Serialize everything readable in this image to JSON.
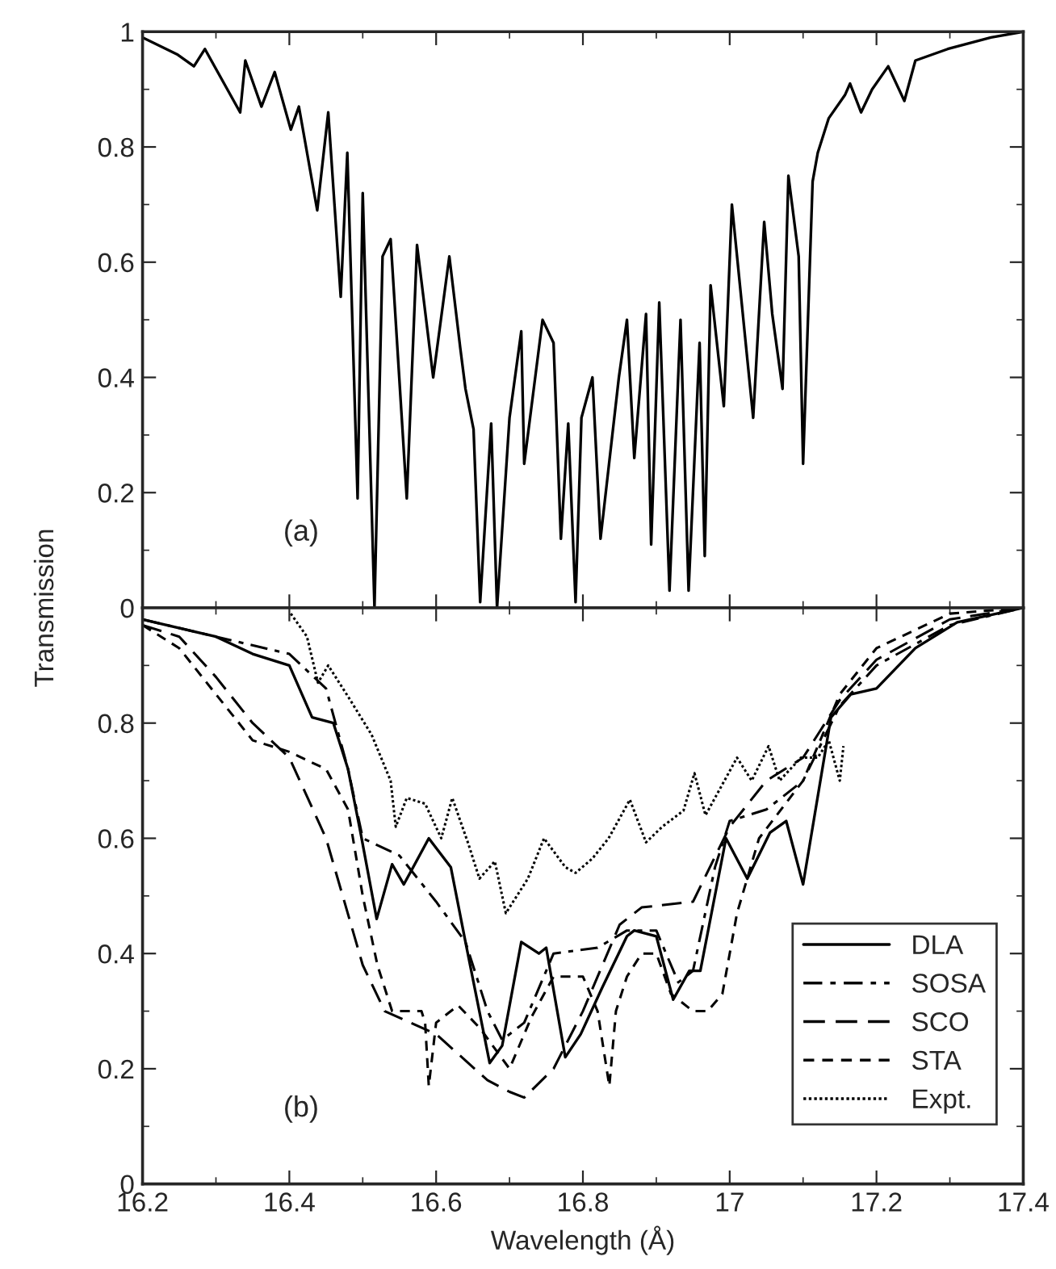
{
  "chart_data": [
    {
      "type": "line",
      "ylim": [
        0,
        1
      ],
      "yticks": [
        0,
        0.2,
        0.4,
        0.6,
        0.8,
        1
      ],
      "xlim": [
        16.2,
        17.4
      ],
      "xticks": [
        16.2,
        16.4,
        16.6,
        16.8,
        17,
        17.2,
        17.4
      ],
      "tick_labels": "y",
      "annotations": [
        "(a)"
      ],
      "grid": false,
      "legend": false,
      "series": [
        {
          "color": "#000000",
          "line_style": "solid",
          "x": [
            16.2,
            16.248,
            16.27,
            16.285,
            16.333,
            16.34,
            16.362,
            16.38,
            16.402,
            16.413,
            16.438,
            16.453,
            16.47,
            16.479,
            16.493,
            16.5,
            16.516,
            16.527,
            16.538,
            16.56,
            16.574,
            16.596,
            16.618,
            16.633,
            16.64,
            16.651,
            16.66,
            16.675,
            16.683,
            16.7,
            16.716,
            16.72,
            16.745,
            16.76,
            16.77,
            16.78,
            16.79,
            16.798,
            16.813,
            16.824,
            16.849,
            16.86,
            16.87,
            16.886,
            16.893,
            16.904,
            16.918,
            16.933,
            16.944,
            16.959,
            16.966,
            16.974,
            16.992,
            17.003,
            17.021,
            17.032,
            17.047,
            17.058,
            17.072,
            17.08,
            17.094,
            17.1,
            17.113,
            17.12,
            17.135,
            17.157,
            17.164,
            17.179,
            17.194,
            17.216,
            17.238,
            17.253,
            17.297,
            17.356,
            17.4
          ],
          "values": [
            0.99,
            0.96,
            0.94,
            0.97,
            0.86,
            0.95,
            0.87,
            0.93,
            0.83,
            0.87,
            0.69,
            0.86,
            0.54,
            0.79,
            0.19,
            0.72,
            0.0,
            0.61,
            0.64,
            0.19,
            0.63,
            0.4,
            0.61,
            0.45,
            0.38,
            0.31,
            0.01,
            0.32,
            0.0,
            0.33,
            0.48,
            0.25,
            0.5,
            0.46,
            0.12,
            0.32,
            0.01,
            0.33,
            0.4,
            0.12,
            0.4,
            0.5,
            0.26,
            0.51,
            0.11,
            0.53,
            0.03,
            0.5,
            0.03,
            0.46,
            0.09,
            0.56,
            0.35,
            0.7,
            0.47,
            0.33,
            0.67,
            0.51,
            0.38,
            0.75,
            0.61,
            0.25,
            0.74,
            0.79,
            0.85,
            0.89,
            0.91,
            0.86,
            0.9,
            0.94,
            0.88,
            0.95,
            0.97,
            0.99,
            1.0
          ]
        }
      ]
    },
    {
      "type": "line",
      "ylim": [
        0,
        1
      ],
      "yticks": [
        0,
        0.2,
        0.4,
        0.6,
        0.8
      ],
      "xlim": [
        16.2,
        17.4
      ],
      "xticks": [
        16.2,
        16.4,
        16.6,
        16.8,
        17,
        17.2,
        17.4
      ],
      "xlabel": "Wavelength (Å)",
      "ylabel": "Transmission",
      "annotations": [
        "(b)"
      ],
      "grid": false,
      "legend": "bottom right",
      "series": [
        {
          "name": "DLA",
          "color": "#000000",
          "line_style": "solid",
          "x": [
            16.2,
            16.3,
            16.35,
            16.4,
            16.431,
            16.46,
            16.48,
            16.497,
            16.519,
            16.54,
            16.556,
            16.59,
            16.62,
            16.64,
            16.673,
            16.69,
            16.716,
            16.74,
            16.75,
            16.776,
            16.797,
            16.826,
            16.86,
            16.87,
            16.9,
            16.923,
            16.945,
            16.96,
            16.995,
            17.024,
            17.055,
            17.077,
            17.1,
            17.138,
            17.165,
            17.2,
            17.253,
            17.31,
            17.4
          ],
          "values": [
            0.98,
            0.95,
            0.92,
            0.9,
            0.81,
            0.8,
            0.72,
            0.61,
            0.46,
            0.555,
            0.52,
            0.6,
            0.55,
            0.42,
            0.21,
            0.24,
            0.42,
            0.4,
            0.41,
            0.22,
            0.26,
            0.34,
            0.43,
            0.44,
            0.43,
            0.32,
            0.37,
            0.37,
            0.6,
            0.53,
            0.61,
            0.63,
            0.52,
            0.81,
            0.85,
            0.86,
            0.93,
            0.975,
            1.0
          ]
        },
        {
          "name": "SOSA",
          "color": "#000000",
          "line_style": "dashdot",
          "x": [
            16.2,
            16.3,
            16.4,
            16.45,
            16.48,
            16.5,
            16.55,
            16.6,
            16.64,
            16.67,
            16.69,
            16.72,
            16.76,
            16.82,
            16.86,
            16.9,
            16.93,
            16.95,
            16.98,
            17.0,
            17.05,
            17.1,
            17.15,
            17.2,
            17.3,
            17.4
          ],
          "values": [
            0.98,
            0.95,
            0.92,
            0.86,
            0.72,
            0.6,
            0.57,
            0.49,
            0.42,
            0.3,
            0.25,
            0.28,
            0.4,
            0.41,
            0.44,
            0.44,
            0.35,
            0.37,
            0.55,
            0.63,
            0.65,
            0.7,
            0.83,
            0.9,
            0.97,
            1.0
          ]
        },
        {
          "name": "SCO",
          "color": "#000000",
          "line_style": "longdash",
          "x": [
            16.2,
            16.25,
            16.3,
            16.35,
            16.4,
            16.45,
            16.5,
            16.53,
            16.6,
            16.67,
            16.7,
            16.72,
            16.76,
            16.8,
            16.85,
            16.88,
            16.95,
            17.0,
            17.05,
            17.1,
            17.15,
            17.2,
            17.3,
            17.4
          ],
          "values": [
            0.97,
            0.95,
            0.88,
            0.8,
            0.74,
            0.6,
            0.38,
            0.3,
            0.26,
            0.18,
            0.16,
            0.15,
            0.2,
            0.3,
            0.45,
            0.48,
            0.49,
            0.62,
            0.7,
            0.74,
            0.84,
            0.91,
            0.98,
            1.0
          ]
        },
        {
          "name": "STA",
          "color": "#000000",
          "line_style": "dashed",
          "x": [
            16.2,
            16.25,
            16.3,
            16.35,
            16.4,
            16.45,
            16.48,
            16.5,
            16.52,
            16.54,
            16.58,
            16.585,
            16.59,
            16.6,
            16.63,
            16.66,
            16.7,
            16.73,
            16.76,
            16.8,
            16.82,
            16.836,
            16.845,
            16.86,
            16.88,
            16.9,
            16.92,
            16.95,
            16.97,
            16.99,
            17.01,
            17.04,
            17.1,
            17.15,
            17.2,
            17.3,
            17.4
          ],
          "values": [
            0.97,
            0.93,
            0.85,
            0.77,
            0.75,
            0.72,
            0.65,
            0.5,
            0.38,
            0.3,
            0.3,
            0.28,
            0.17,
            0.28,
            0.31,
            0.27,
            0.2,
            0.29,
            0.36,
            0.36,
            0.3,
            0.17,
            0.3,
            0.36,
            0.4,
            0.4,
            0.33,
            0.3,
            0.3,
            0.33,
            0.47,
            0.6,
            0.7,
            0.85,
            0.93,
            0.99,
            1.0
          ]
        },
        {
          "name": "Expt.",
          "color": "#000000",
          "line_style": "dotted",
          "x": [
            16.402,
            16.424,
            16.439,
            16.453,
            16.483,
            16.512,
            16.538,
            16.545,
            16.56,
            16.585,
            16.607,
            16.622,
            16.644,
            16.659,
            16.68,
            16.695,
            16.725,
            16.747,
            16.776,
            16.79,
            16.813,
            16.835,
            16.864,
            16.886,
            16.908,
            16.937,
            16.952,
            16.967,
            17.01,
            17.03,
            17.053,
            17.068,
            17.097,
            17.12,
            17.135,
            17.15,
            17.155
          ],
          "values": [
            0.99,
            0.95,
            0.87,
            0.9,
            0.84,
            0.78,
            0.7,
            0.62,
            0.67,
            0.66,
            0.6,
            0.67,
            0.59,
            0.53,
            0.56,
            0.47,
            0.53,
            0.6,
            0.55,
            0.54,
            0.565,
            0.6,
            0.667,
            0.593,
            0.62,
            0.648,
            0.713,
            0.64,
            0.74,
            0.7,
            0.76,
            0.7,
            0.74,
            0.74,
            0.77,
            0.7,
            0.76
          ]
        }
      ]
    }
  ]
}
